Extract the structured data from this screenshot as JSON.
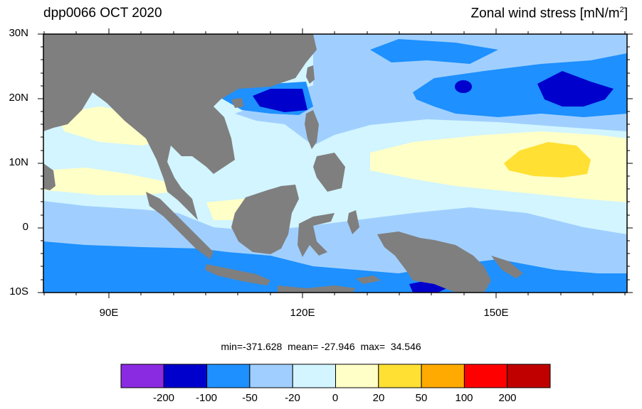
{
  "header": {
    "left_title": "dpp0066 OCT 2020",
    "right_title_main": "Zonal wind stress [mN/m",
    "right_title_sup": "2",
    "right_title_end": "]"
  },
  "axes": {
    "lat_labels": [
      "30N",
      "20N",
      "10N",
      "0",
      "10S"
    ],
    "lon_labels": [
      "90E",
      "120E",
      "150E"
    ]
  },
  "stats": {
    "text": "min=-371.628  mean= -27.946  max=  34.546"
  },
  "colorbar": {
    "labels": [
      "-200",
      "-100",
      "-50",
      "-20",
      "0",
      "20",
      "50",
      "100",
      "200"
    ],
    "colors": [
      "#8a2be2",
      "#0000cd",
      "#1e90ff",
      "#a0cfff",
      "#d2f5ff",
      "#ffffc8",
      "#ffe033",
      "#ffaa00",
      "#ff0000",
      "#c00000"
    ]
  },
  "map_colors": {
    "land": "#7f7f7f",
    "c_m200": "#0000cd",
    "c_m100": "#1e90ff",
    "c_m50": "#a0cfff",
    "c_m20": "#d2f5ff",
    "c_0": "#ffffc8",
    "c_20": "#ffe033"
  }
}
